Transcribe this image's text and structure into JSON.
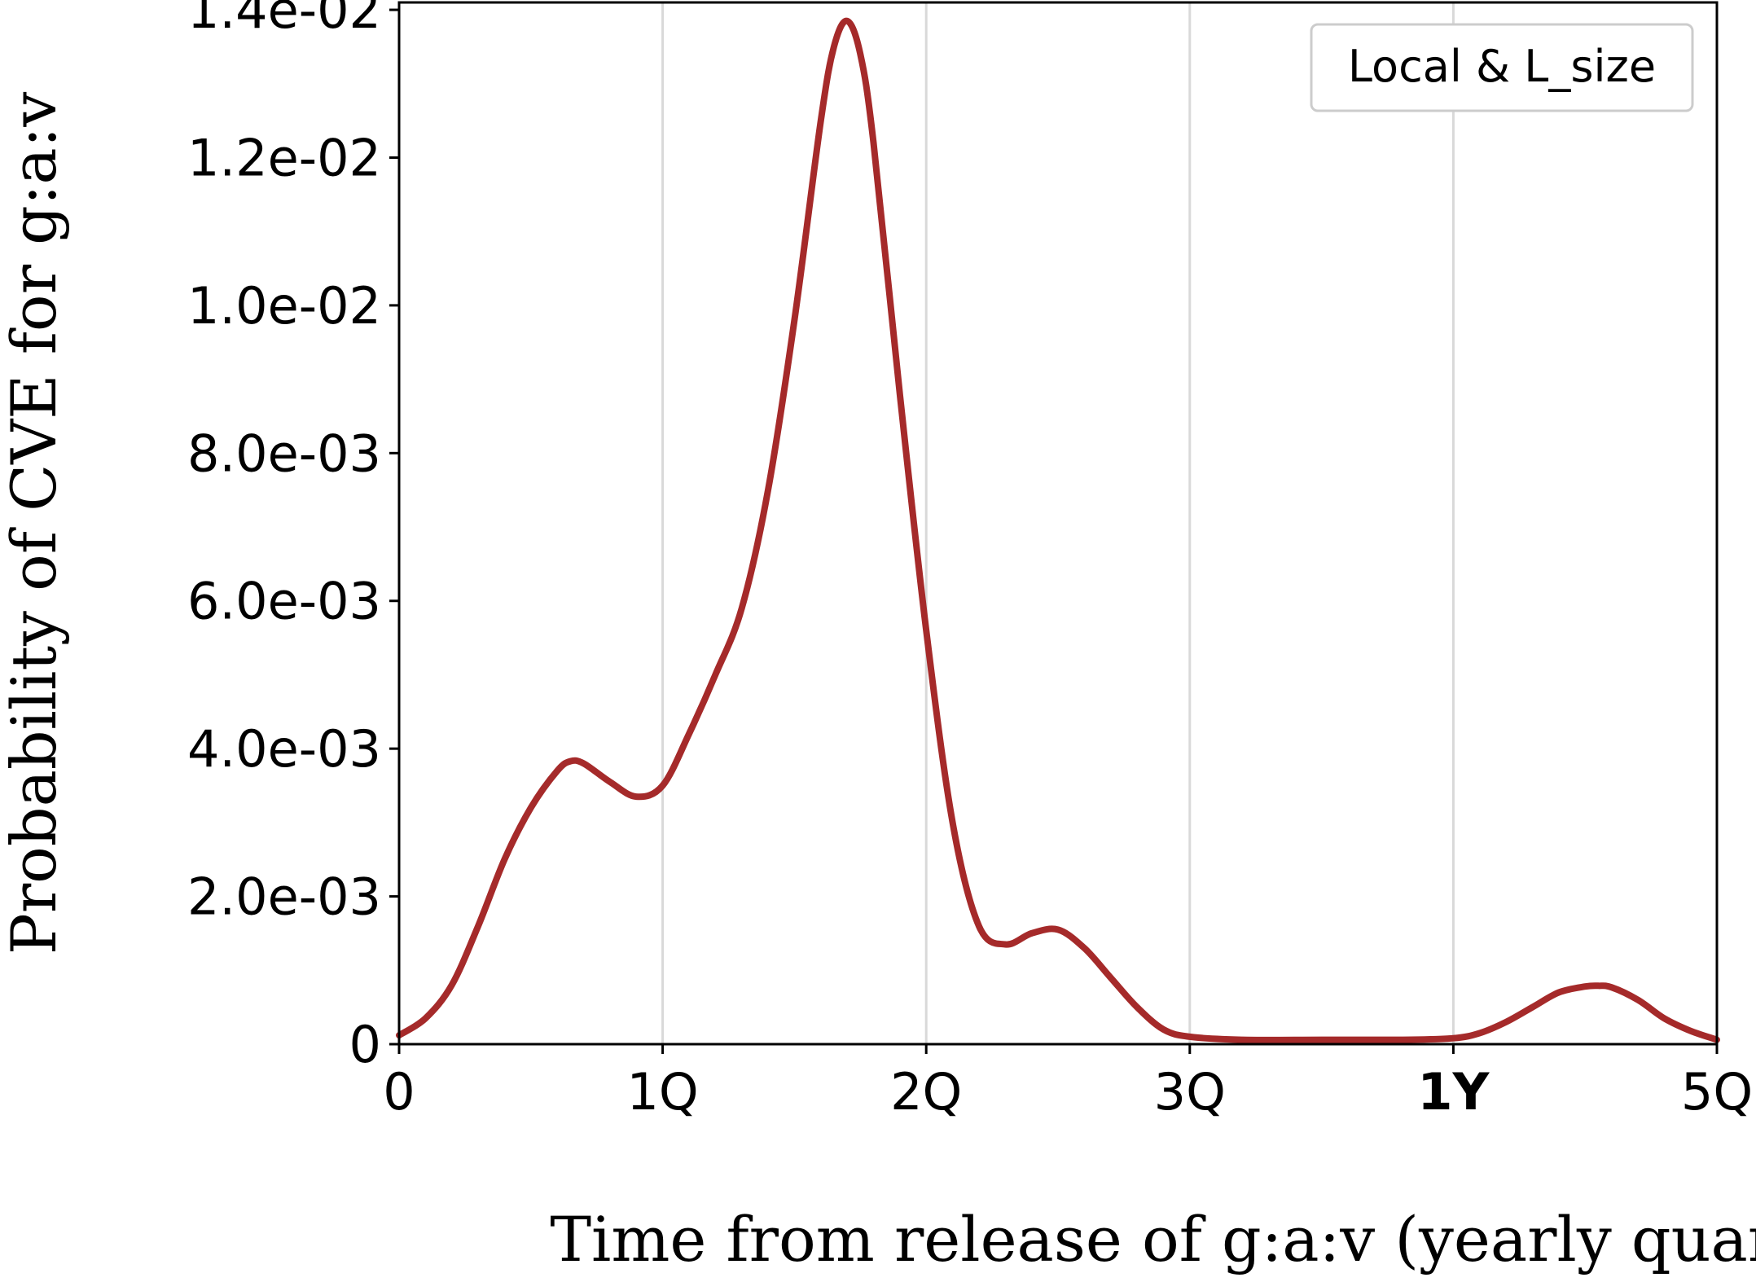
{
  "chart_data": {
    "type": "line",
    "xlabel": "Time from release of g:a:v (yearly quarters)",
    "ylabel": "Probability of CVE for g:a:v",
    "xlim": [
      0,
      5
    ],
    "ylim": [
      0,
      0.0141
    ],
    "x_ticks": [
      {
        "value": 0,
        "label": "0",
        "bold": false
      },
      {
        "value": 1,
        "label": "1Q",
        "bold": false
      },
      {
        "value": 2,
        "label": "2Q",
        "bold": false
      },
      {
        "value": 3,
        "label": "3Q",
        "bold": false
      },
      {
        "value": 4,
        "label": "1Y",
        "bold": true
      },
      {
        "value": 5,
        "label": "5Q",
        "bold": false
      }
    ],
    "y_ticks": [
      {
        "value": 0,
        "label": "0"
      },
      {
        "value": 0.002,
        "label": "2.0e-03"
      },
      {
        "value": 0.004,
        "label": "4.0e-03"
      },
      {
        "value": 0.006,
        "label": "6.0e-03"
      },
      {
        "value": 0.008,
        "label": "8.0e-03"
      },
      {
        "value": 0.01,
        "label": "1.0e-02"
      },
      {
        "value": 0.012,
        "label": "1.2e-02"
      },
      {
        "value": 0.014,
        "label": "1.4e-02"
      }
    ],
    "grid": {
      "x": true,
      "y": false
    },
    "legend_position": "top-right",
    "series": [
      {
        "name": "Local & L_size",
        "color": "#a52a2a",
        "x": [
          0,
          0.1,
          0.2,
          0.3,
          0.4,
          0.5,
          0.6,
          0.65,
          0.7,
          0.8,
          0.9,
          1.0,
          1.1,
          1.2,
          1.3,
          1.4,
          1.5,
          1.6,
          1.65,
          1.7,
          1.75,
          1.8,
          1.9,
          2.0,
          2.1,
          2.2,
          2.3,
          2.4,
          2.5,
          2.6,
          2.7,
          2.8,
          2.9,
          3.0,
          3.2,
          3.5,
          3.8,
          4.0,
          4.1,
          4.2,
          4.3,
          4.4,
          4.5,
          4.55,
          4.6,
          4.7,
          4.8,
          4.9,
          5.0
        ],
        "y": [
          0.00012,
          0.00035,
          0.0008,
          0.0016,
          0.0025,
          0.0032,
          0.0037,
          0.00383,
          0.0038,
          0.00355,
          0.00335,
          0.0035,
          0.0042,
          0.005,
          0.0059,
          0.0075,
          0.0098,
          0.0125,
          0.0135,
          0.01385,
          0.0134,
          0.0122,
          0.0088,
          0.0056,
          0.003,
          0.0016,
          0.00135,
          0.0015,
          0.00155,
          0.0013,
          0.0009,
          0.0005,
          0.0002,
          0.0001,
          6e-05,
          6e-05,
          6e-05,
          8e-05,
          0.00015,
          0.0003,
          0.0005,
          0.0007,
          0.00078,
          0.00079,
          0.00077,
          0.0006,
          0.00035,
          0.00018,
          6e-05
        ]
      }
    ]
  }
}
